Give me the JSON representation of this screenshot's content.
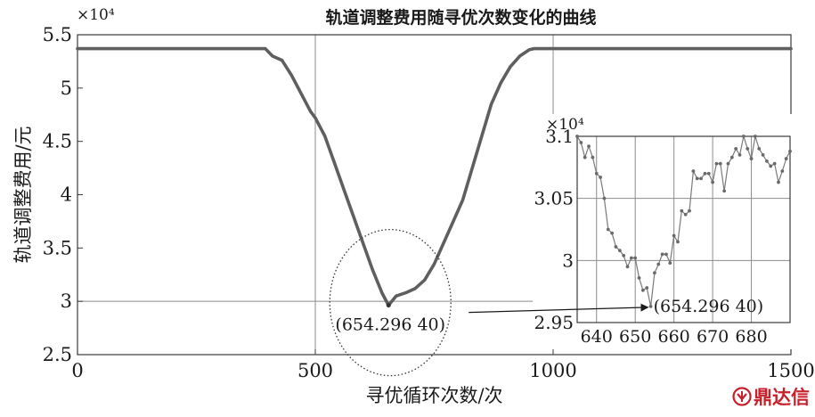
{
  "chart_data": [
    {
      "type": "line",
      "title": "轨道调整费用随寻优次数变化的曲线",
      "xlabel": "寻优循环次数/次",
      "ylabel": "轨道调整费用/元",
      "y_multiplier": "×10⁴",
      "xlim": [
        0,
        1500
      ],
      "ylim": [
        2.5,
        5.5
      ],
      "xticks": [
        0,
        500,
        1000,
        1500
      ],
      "xtick_labels": [
        "0",
        "500",
        "1000",
        "1500"
      ],
      "yticks": [
        2.5,
        3,
        3.5,
        4,
        4.5,
        5,
        5.5
      ],
      "ytick_labels": [
        "2.5",
        "3",
        "3.5",
        "4",
        "4.5",
        "5",
        "5.5"
      ],
      "grid": true,
      "color": "#5f5f5f",
      "series": [
        {
          "x": [
            0,
            200,
            395,
            410,
            430,
            450,
            470,
            490,
            500,
            520,
            540,
            560,
            580,
            600,
            620,
            640,
            654,
            670,
            690,
            710,
            730,
            750,
            770,
            790,
            810,
            830,
            850,
            870,
            890,
            910,
            930,
            950,
            960,
            980,
            1000,
            1200,
            1500
          ],
          "y": [
            5.37,
            5.37,
            5.37,
            5.3,
            5.26,
            5.12,
            4.95,
            4.78,
            4.72,
            4.55,
            4.3,
            4.05,
            3.8,
            3.55,
            3.3,
            3.08,
            2.963,
            3.05,
            3.08,
            3.12,
            3.2,
            3.35,
            3.55,
            3.75,
            3.95,
            4.25,
            4.55,
            4.85,
            5.05,
            5.2,
            5.3,
            5.36,
            5.37,
            5.37,
            5.37,
            5.37,
            5.37
          ]
        }
      ],
      "annotation": {
        "text": "(654.296 40)",
        "x": 654,
        "y": 2.963
      }
    },
    {
      "type": "line",
      "inset": true,
      "y_multiplier": "×10⁴",
      "xlim": [
        635,
        690
      ],
      "ylim": [
        2.95,
        3.1
      ],
      "xticks": [
        640,
        650,
        660,
        670,
        680
      ],
      "xtick_labels": [
        "640",
        "650",
        "660",
        "670",
        "680"
      ],
      "yticks": [
        2.95,
        3,
        3.05,
        3.1
      ],
      "ytick_labels": [
        "2.95",
        "3",
        "3.05",
        "3.1"
      ],
      "grid": true,
      "color": "#7a7a7a",
      "series": [
        {
          "x": [
            635,
            636,
            637,
            638,
            639,
            640,
            641,
            642,
            643,
            644,
            645,
            646,
            647,
            648,
            649,
            650,
            651,
            652,
            653,
            654,
            655,
            656,
            657,
            658,
            659,
            660,
            661,
            662,
            663,
            664,
            665,
            666,
            667,
            668,
            669,
            670,
            671,
            672,
            673,
            674,
            675,
            676,
            677,
            678,
            679,
            680,
            681,
            682,
            683,
            684,
            685,
            686,
            687,
            688,
            689,
            690
          ],
          "y": [
            3.1,
            3.095,
            3.083,
            3.092,
            3.083,
            3.07,
            3.067,
            3.05,
            3.025,
            3.022,
            3.011,
            3.008,
            3.004,
            2.995,
            3.002,
            3.002,
            2.986,
            2.976,
            2.978,
            2.963,
            2.99,
            2.997,
            3.005,
            3.005,
            2.998,
            3.02,
            3.015,
            3.04,
            3.037,
            3.04,
            3.072,
            3.066,
            3.066,
            3.07,
            3.07,
            3.063,
            3.078,
            3.078,
            3.056,
            3.078,
            3.083,
            3.09,
            3.085,
            3.1,
            3.09,
            3.082,
            3.1,
            3.09,
            3.085,
            3.08,
            3.076,
            3.078,
            3.063,
            3.072,
            3.082,
            3.088
          ]
        }
      ],
      "annotation": {
        "text": "(654.296 40)",
        "x": 654,
        "y": 2.963
      }
    }
  ],
  "watermark": {
    "text": "鼎达信",
    "color": "#c8202a"
  }
}
